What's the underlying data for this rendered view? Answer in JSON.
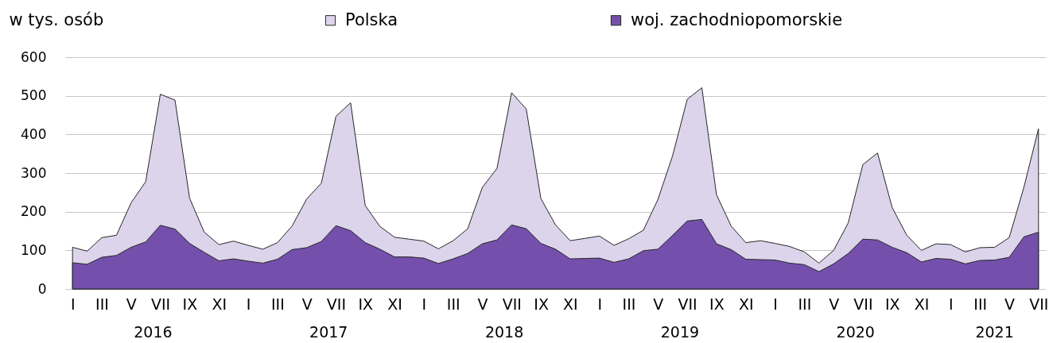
{
  "chart_data": {
    "type": "area",
    "ylabel": "w tys. osób",
    "categories": [
      "I",
      null,
      "III",
      null,
      "V",
      null,
      "VII",
      null,
      "IX",
      null,
      "XI",
      null,
      "I",
      null,
      "III",
      null,
      "V",
      null,
      "VII",
      null,
      "IX",
      null,
      "XI",
      null,
      "I",
      null,
      "III",
      null,
      "V",
      null,
      "VII",
      null,
      "IX",
      null,
      "XI",
      null,
      "I",
      null,
      "III",
      null,
      "V",
      null,
      "VII",
      null,
      "IX",
      null,
      "XI",
      null,
      "I",
      null,
      "III",
      null,
      "V",
      null,
      "VII",
      null,
      "IX",
      null,
      "XI",
      null,
      "I",
      null,
      "III",
      null,
      "V",
      null,
      "VII"
    ],
    "ylim": [
      0,
      600
    ],
    "yticks": [
      0,
      100,
      200,
      300,
      400,
      500,
      600
    ],
    "grid": "y",
    "legend": "top",
    "series": [
      {
        "name": "Polska",
        "color": "#dcd4ea",
        "values": [
          108,
          98,
          133,
          139,
          223,
          278,
          504,
          489,
          235,
          147,
          115,
          124,
          113,
          103,
          120,
          163,
          233,
          274,
          447,
          482,
          216,
          162,
          134,
          129,
          124,
          104,
          125,
          156,
          263,
          312,
          508,
          466,
          234,
          166,
          125,
          131,
          137,
          113,
          130,
          152,
          232,
          345,
          491,
          521,
          244,
          163,
          120,
          125,
          118,
          110,
          96,
          67,
          100,
          171,
          322,
          352,
          211,
          139,
          100,
          117,
          115,
          96,
          107,
          108,
          133,
          263,
          415
        ]
      },
      {
        "name": "woj. zachodniopomorskie",
        "color": "#7450ac",
        "values": [
          68,
          64,
          82,
          87,
          108,
          122,
          165,
          155,
          118,
          95,
          73,
          78,
          72,
          67,
          77,
          102,
          107,
          123,
          164,
          151,
          120,
          103,
          83,
          83,
          80,
          66,
          78,
          92,
          117,
          127,
          166,
          156,
          118,
          103,
          78,
          79,
          80,
          69,
          78,
          99,
          103,
          139,
          176,
          180,
          117,
          102,
          77,
          76,
          75,
          67,
          63,
          45,
          65,
          92,
          129,
          127,
          108,
          94,
          70,
          79,
          77,
          65,
          74,
          75,
          82,
          135,
          147
        ]
      }
    ],
    "annotations": [
      "2016",
      "2017",
      "2018",
      "2019",
      "2020",
      "2021"
    ]
  }
}
